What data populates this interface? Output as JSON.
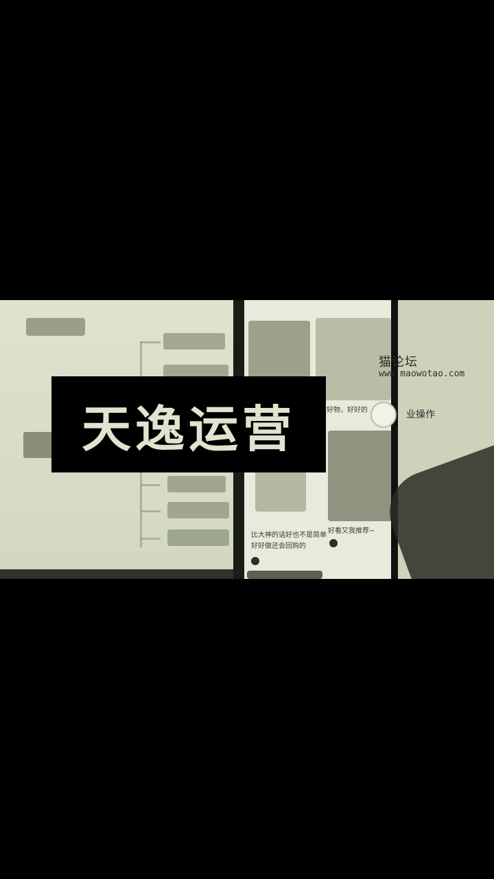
{
  "overlay": {
    "title": "天逸运营"
  },
  "watermark": {
    "line1": "猫论坛",
    "line2": "www.maowotao.com",
    "line3": "业操作"
  },
  "phone": {
    "caption_a": "比大神的话好也不是简单",
    "caption_b": "好好做还会回购的",
    "caption_c": "好物，好好的",
    "caption_d": "好看又我推荐~"
  },
  "colors": {
    "background": "#000000",
    "photo_tint": "#d6dbc6",
    "title_text": "#dfe4cf"
  }
}
